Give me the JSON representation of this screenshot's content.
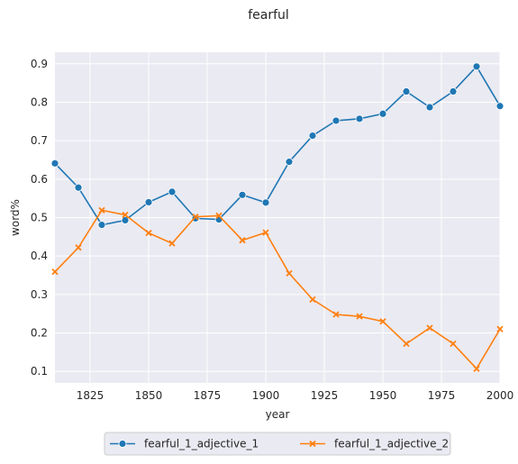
{
  "chart_data": {
    "type": "line",
    "title": "fearful",
    "xlabel": "year",
    "ylabel": "word%",
    "xlim": [
      1810,
      2000
    ],
    "ylim": [
      0.07,
      0.93
    ],
    "xticks": [
      1825,
      1850,
      1875,
      1900,
      1925,
      1950,
      1975,
      2000
    ],
    "yticks": [
      0.1,
      0.2,
      0.3,
      0.4,
      0.5,
      0.6,
      0.7,
      0.8,
      0.9
    ],
    "grid": true,
    "legend_position": "bottom-center",
    "x": [
      1810,
      1820,
      1830,
      1840,
      1850,
      1860,
      1870,
      1880,
      1890,
      1900,
      1910,
      1920,
      1930,
      1940,
      1950,
      1960,
      1970,
      1980,
      1990,
      2000
    ],
    "series": [
      {
        "name": "fearful_1_adjective_1",
        "color": "#1f77b4",
        "marker": "circle",
        "values": [
          0.641,
          0.578,
          0.481,
          0.493,
          0.54,
          0.567,
          0.498,
          0.495,
          0.559,
          0.539,
          0.645,
          0.713,
          0.752,
          0.757,
          0.77,
          0.828,
          0.787,
          0.828,
          0.893,
          0.79
        ]
      },
      {
        "name": "fearful_1_adjective_2",
        "color": "#ff7f0e",
        "marker": "x",
        "values": [
          0.359,
          0.422,
          0.519,
          0.507,
          0.46,
          0.433,
          0.502,
          0.505,
          0.441,
          0.461,
          0.355,
          0.287,
          0.248,
          0.243,
          0.23,
          0.172,
          0.213,
          0.172,
          0.107,
          0.21
        ]
      }
    ]
  }
}
